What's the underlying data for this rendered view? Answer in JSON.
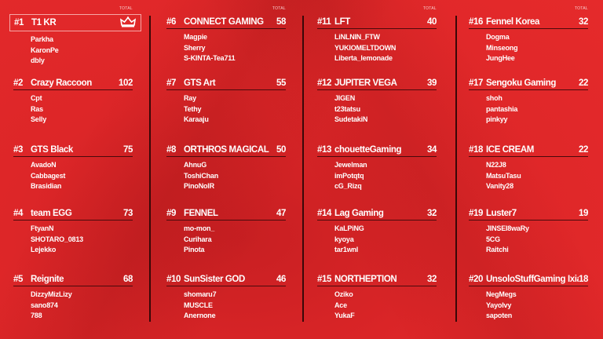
{
  "total_label": "TOTAL",
  "columns": [
    {
      "teams": [
        {
          "rank": "#1",
          "name": "T1 KR",
          "score": "",
          "icon": "crown-icon",
          "players": [
            "Parkha",
            "KaronPe",
            "dbly"
          ]
        },
        {
          "rank": "#2",
          "name": "Crazy Raccoon",
          "score": "102",
          "players": [
            "Cpt",
            "Ras",
            "Selly"
          ]
        },
        {
          "rank": "#3",
          "name": "GTS Black",
          "score": "75",
          "players": [
            "AvadoN",
            "Cabbagest",
            "Brasidian"
          ]
        },
        {
          "rank": "#4",
          "name": "team EGG",
          "score": "73",
          "players": [
            "FtyanN",
            "SHOTARO_0813",
            "Lejekko"
          ]
        },
        {
          "rank": "#5",
          "name": "Reignite",
          "score": "68",
          "players": [
            "DizzyMizLizy",
            "sano874",
            "788"
          ]
        }
      ]
    },
    {
      "teams": [
        {
          "rank": "#6",
          "name": "CONNECT GAMING",
          "score": "58",
          "players": [
            "Magpie",
            "Sherry",
            "S-KINTA-Tea711"
          ]
        },
        {
          "rank": "#7",
          "name": "GTS Art",
          "score": "55",
          "players": [
            "Ray",
            "Tethy",
            "Karaaju"
          ]
        },
        {
          "rank": "#8",
          "name": "ORTHROS MAGICAL",
          "score": "50",
          "players": [
            "AhnuG",
            "ToshiChan",
            "PinoNolR"
          ]
        },
        {
          "rank": "#9",
          "name": "FENNEL",
          "score": "47",
          "players": [
            "mo-mon_",
            "Curihara",
            "Pinota"
          ]
        },
        {
          "rank": "#10",
          "name": "SunSister GOD",
          "score": "46",
          "players": [
            "shomaru7",
            "MUSCLE",
            "Anernone"
          ]
        }
      ]
    },
    {
      "teams": [
        {
          "rank": "#11",
          "name": "LFT",
          "score": "40",
          "players": [
            "LiNLNIN_FTW",
            "YUKIOMELTDOWN",
            "Liberta_lemonade"
          ]
        },
        {
          "rank": "#12",
          "name": "JUPITER VEGA",
          "score": "39",
          "players": [
            "JIGEN",
            "t23tatsu",
            "SudetakiN"
          ]
        },
        {
          "rank": "#13",
          "name": "chouetteGaming",
          "score": "34",
          "players": [
            "Jewelman",
            "imPotqtq",
            "cG_Rizq"
          ]
        },
        {
          "rank": "#14",
          "name": "Lag Gaming",
          "score": "32",
          "players": [
            "KaLPiNG",
            "kyoya",
            "tar1wnl"
          ]
        },
        {
          "rank": "#15",
          "name": "NORTHEPTION",
          "score": "32",
          "players": [
            "Oziko",
            "Ace",
            "YukaF"
          ]
        }
      ]
    },
    {
      "teams": [
        {
          "rank": "#16",
          "name": "Fennel Korea",
          "score": "32",
          "players": [
            "Dogma",
            "Minseong",
            "JungHee"
          ]
        },
        {
          "rank": "#17",
          "name": "Sengoku Gaming",
          "score": "22",
          "players": [
            "shoh",
            "pantashia",
            "pinkyy"
          ]
        },
        {
          "rank": "#18",
          "name": "ICE CREAM",
          "score": "22",
          "players": [
            "N22J8",
            "MatsuTasu",
            "Vanity28"
          ]
        },
        {
          "rank": "#19",
          "name": "Luster7",
          "score": "19",
          "players": [
            "JINSEI8waRy",
            "5CG",
            "Raitchi"
          ]
        },
        {
          "rank": "#20",
          "name": "UnsoloStuffGaming Ixia",
          "score": "18",
          "players": [
            "NegMegs",
            "YayoIvy",
            "sapoten"
          ]
        }
      ]
    }
  ]
}
